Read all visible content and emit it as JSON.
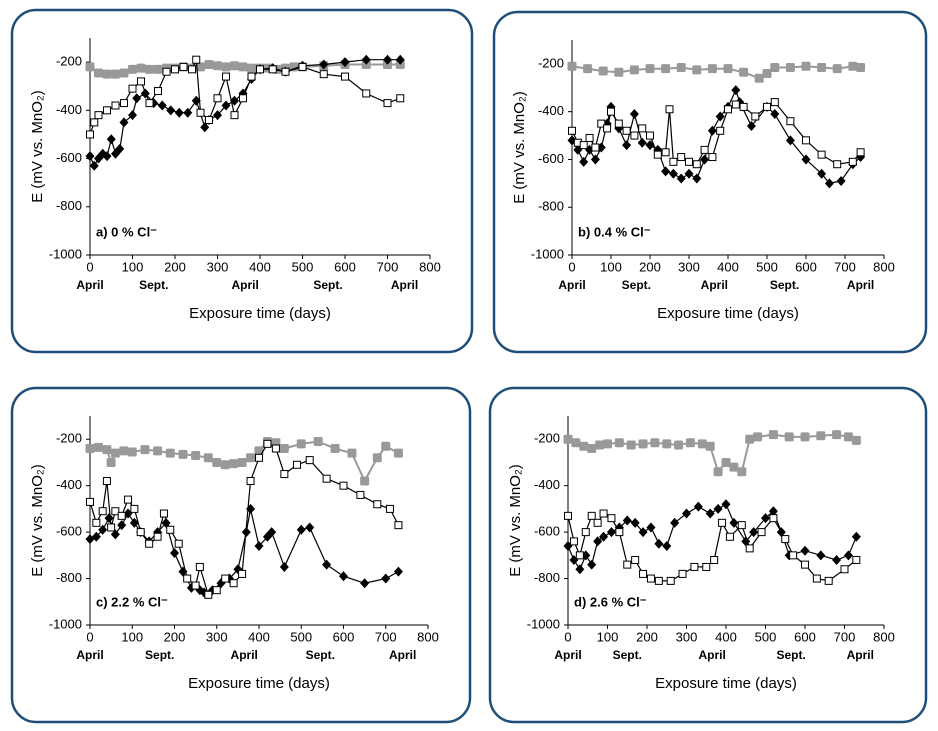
{
  "chart_data": [
    {
      "type": "line",
      "y_label": "E (mV vs. MnO₂)",
      "x_label": "Exposure time (days)",
      "annotation": "a) 0 % Cl⁻",
      "xlim": [
        0,
        800
      ],
      "xticks": [
        0,
        100,
        200,
        300,
        400,
        500,
        600,
        700,
        800
      ],
      "ylim": [
        -1000,
        -100
      ],
      "yticks": [
        -1000,
        -800,
        -600,
        -400,
        -200
      ],
      "month_ticks": [
        {
          "value": 0,
          "label": "April"
        },
        {
          "value": 150,
          "label": "Sept."
        },
        {
          "value": 365,
          "label": "April"
        },
        {
          "value": 560,
          "label": "Sept."
        },
        {
          "value": 740,
          "label": "April"
        }
      ],
      "series": [
        {
          "color": "#999999",
          "marker": "square-filled",
          "x": [
            0,
            20,
            40,
            60,
            80,
            100,
            120,
            140,
            160,
            180,
            200,
            220,
            240,
            260,
            280,
            300,
            320,
            340,
            360,
            380,
            400,
            420,
            440,
            460,
            480,
            500,
            550,
            600,
            650,
            700,
            730
          ],
          "values": [
            -220,
            -245,
            -250,
            -250,
            -245,
            -230,
            -225,
            -230,
            -230,
            -225,
            -225,
            -220,
            -225,
            -220,
            -210,
            -215,
            -220,
            -215,
            -220,
            -225,
            -225,
            -225,
            -230,
            -225,
            -220,
            -220,
            -215,
            -210,
            -210,
            -210,
            -210
          ]
        },
        {
          "color": "#000000",
          "marker": "diamond-filled",
          "x": [
            0,
            10,
            20,
            30,
            40,
            50,
            60,
            70,
            80,
            100,
            110,
            130,
            150,
            170,
            190,
            210,
            230,
            250,
            270,
            280,
            300,
            320,
            340,
            360,
            380,
            400,
            430,
            460,
            500,
            550,
            600,
            650,
            700,
            730
          ],
          "values": [
            -590,
            -630,
            -600,
            -580,
            -590,
            -520,
            -580,
            -560,
            -450,
            -420,
            -350,
            -330,
            -370,
            -380,
            -400,
            -410,
            -410,
            -360,
            -470,
            -440,
            -420,
            -380,
            -360,
            -330,
            -270,
            -230,
            -225,
            -240,
            -215,
            -210,
            -200,
            -190,
            -190,
            -190
          ]
        },
        {
          "color": "#000000",
          "marker": "square-open",
          "x": [
            0,
            10,
            20,
            40,
            60,
            80,
            100,
            120,
            140,
            160,
            180,
            200,
            220,
            240,
            250,
            260,
            280,
            300,
            320,
            340,
            360,
            380,
            400,
            430,
            460,
            500,
            550,
            600,
            650,
            700,
            730
          ],
          "values": [
            -500,
            -450,
            -420,
            -400,
            -380,
            -370,
            -310,
            -280,
            -370,
            -320,
            -240,
            -230,
            -220,
            -230,
            -190,
            -410,
            -440,
            -350,
            -260,
            -420,
            -350,
            -260,
            -230,
            -230,
            -240,
            -220,
            -250,
            -260,
            -330,
            -370,
            -350
          ]
        }
      ]
    },
    {
      "type": "line",
      "y_label": "E (mV vs. MnO₂)",
      "x_label": "Exposure time (days)",
      "annotation": "b) 0.4 % Cl⁻",
      "xlim": [
        0,
        800
      ],
      "xticks": [
        0,
        100,
        200,
        300,
        400,
        500,
        600,
        700,
        800
      ],
      "ylim": [
        -1000,
        -100
      ],
      "yticks": [
        -1000,
        -800,
        -600,
        -400,
        -200
      ],
      "month_ticks": [
        {
          "value": 0,
          "label": "April"
        },
        {
          "value": 165,
          "label": "Sept."
        },
        {
          "value": 365,
          "label": "April"
        },
        {
          "value": 545,
          "label": "Sept."
        },
        {
          "value": 740,
          "label": "April"
        }
      ],
      "series": [
        {
          "color": "#999999",
          "marker": "square-filled",
          "x": [
            0,
            40,
            80,
            120,
            160,
            200,
            240,
            280,
            320,
            360,
            400,
            440,
            480,
            500,
            520,
            560,
            600,
            640,
            680,
            720,
            740
          ],
          "values": [
            -210,
            -220,
            -230,
            -235,
            -225,
            -220,
            -220,
            -215,
            -225,
            -220,
            -220,
            -235,
            -260,
            -240,
            -215,
            -215,
            -210,
            -215,
            -220,
            -210,
            -215
          ]
        },
        {
          "color": "#000000",
          "marker": "diamond-filled",
          "x": [
            0,
            15,
            30,
            45,
            60,
            75,
            90,
            100,
            120,
            140,
            160,
            180,
            200,
            220,
            240,
            260,
            280,
            300,
            320,
            340,
            360,
            380,
            400,
            420,
            430,
            460,
            500,
            520,
            560,
            600,
            640,
            660,
            690,
            720,
            740
          ],
          "values": [
            -520,
            -560,
            -610,
            -560,
            -600,
            -550,
            -450,
            -380,
            -470,
            -540,
            -410,
            -530,
            -540,
            -560,
            -650,
            -660,
            -680,
            -660,
            -680,
            -600,
            -480,
            -420,
            -380,
            -310,
            -360,
            -460,
            -380,
            -410,
            -520,
            -600,
            -660,
            -700,
            -690,
            -620,
            -590
          ]
        },
        {
          "color": "#000000",
          "marker": "square-open",
          "x": [
            0,
            15,
            30,
            45,
            60,
            75,
            90,
            100,
            120,
            140,
            160,
            180,
            200,
            220,
            240,
            250,
            260,
            280,
            300,
            320,
            340,
            360,
            380,
            400,
            420,
            440,
            470,
            500,
            520,
            560,
            600,
            640,
            680,
            720,
            740
          ],
          "values": [
            -480,
            -530,
            -540,
            -510,
            -550,
            -450,
            -470,
            -400,
            -450,
            -480,
            -500,
            -470,
            -500,
            -580,
            -570,
            -390,
            -610,
            -590,
            -610,
            -620,
            -560,
            -590,
            -480,
            -390,
            -370,
            -380,
            -420,
            -380,
            -360,
            -440,
            -520,
            -580,
            -620,
            -610,
            -570
          ]
        }
      ]
    },
    {
      "type": "line",
      "y_label": "E (mV vs. MnO₂)",
      "x_label": "Exposure time (days)",
      "annotation": "c) 2.2 % Cl⁻",
      "xlim": [
        0,
        800
      ],
      "xticks": [
        0,
        100,
        200,
        300,
        400,
        500,
        600,
        700,
        800
      ],
      "ylim": [
        -1000,
        -100
      ],
      "yticks": [
        -1000,
        -800,
        -600,
        -400,
        -200
      ],
      "month_ticks": [
        {
          "value": 0,
          "label": "April"
        },
        {
          "value": 165,
          "label": "Sept."
        },
        {
          "value": 365,
          "label": "April"
        },
        {
          "value": 545,
          "label": "Sept."
        },
        {
          "value": 740,
          "label": "April"
        }
      ],
      "series": [
        {
          "color": "#999999",
          "marker": "square-filled",
          "x": [
            0,
            20,
            40,
            50,
            60,
            80,
            100,
            130,
            160,
            190,
            220,
            250,
            280,
            300,
            320,
            340,
            360,
            380,
            400,
            420,
            440,
            460,
            500,
            540,
            580,
            620,
            650,
            680,
            700,
            730
          ],
          "values": [
            -240,
            -235,
            -245,
            -300,
            -260,
            -250,
            -255,
            -245,
            -250,
            -260,
            -265,
            -270,
            -280,
            -300,
            -310,
            -305,
            -300,
            -280,
            -250,
            -210,
            -215,
            -240,
            -220,
            -210,
            -240,
            -260,
            -380,
            -280,
            -230,
            -260
          ]
        },
        {
          "color": "#000000",
          "marker": "diamond-filled",
          "x": [
            0,
            15,
            30,
            45,
            60,
            75,
            90,
            105,
            120,
            140,
            160,
            180,
            200,
            220,
            240,
            260,
            270,
            290,
            310,
            330,
            350,
            370,
            380,
            400,
            420,
            430,
            460,
            500,
            520,
            560,
            600,
            650,
            700,
            730
          ],
          "values": [
            -630,
            -620,
            -590,
            -540,
            -610,
            -570,
            -520,
            -560,
            -600,
            -640,
            -600,
            -560,
            -690,
            -770,
            -840,
            -850,
            -860,
            -850,
            -820,
            -800,
            -760,
            -600,
            -500,
            -660,
            -620,
            -600,
            -750,
            -590,
            -580,
            -740,
            -790,
            -820,
            -800,
            -770
          ]
        },
        {
          "color": "#000000",
          "marker": "square-open",
          "x": [
            0,
            15,
            30,
            40,
            50,
            60,
            75,
            90,
            105,
            120,
            140,
            160,
            175,
            190,
            210,
            230,
            250,
            260,
            280,
            300,
            320,
            340,
            360,
            380,
            400,
            420,
            440,
            460,
            490,
            520,
            560,
            600,
            640,
            680,
            710,
            730
          ],
          "values": [
            -470,
            -560,
            -510,
            -380,
            -580,
            -510,
            -530,
            -460,
            -500,
            -600,
            -650,
            -620,
            -520,
            -590,
            -650,
            -800,
            -830,
            -750,
            -870,
            -850,
            -800,
            -820,
            -780,
            -380,
            -280,
            -220,
            -240,
            -350,
            -310,
            -290,
            -370,
            -400,
            -440,
            -480,
            -500,
            -570
          ]
        }
      ]
    },
    {
      "type": "line",
      "y_label": "E (mV vs. MnO₂)",
      "x_label": "Exposure time (days)",
      "annotation": "d) 2.6 % Cl⁻",
      "xlim": [
        0,
        800
      ],
      "xticks": [
        0,
        100,
        200,
        300,
        400,
        500,
        600,
        700,
        800
      ],
      "ylim": [
        -1000,
        -100
      ],
      "yticks": [
        -1000,
        -800,
        -600,
        -400,
        -200
      ],
      "month_ticks": [
        {
          "value": 0,
          "label": "April"
        },
        {
          "value": 150,
          "label": "Sept."
        },
        {
          "value": 365,
          "label": "April"
        },
        {
          "value": 565,
          "label": "Sept."
        },
        {
          "value": 740,
          "label": "April"
        }
      ],
      "series": [
        {
          "color": "#999999",
          "marker": "square-filled",
          "x": [
            0,
            20,
            40,
            60,
            80,
            100,
            130,
            160,
            190,
            220,
            250,
            280,
            310,
            340,
            360,
            380,
            400,
            420,
            440,
            460,
            480,
            520,
            560,
            600,
            640,
            680,
            710,
            730
          ],
          "values": [
            -200,
            -215,
            -230,
            -240,
            -225,
            -220,
            -215,
            -225,
            -220,
            -215,
            -220,
            -225,
            -215,
            -220,
            -230,
            -340,
            -300,
            -320,
            -340,
            -200,
            -190,
            -180,
            -190,
            -190,
            -185,
            -180,
            -190,
            -205
          ]
        },
        {
          "color": "#000000",
          "marker": "diamond-filled",
          "x": [
            0,
            15,
            30,
            45,
            60,
            75,
            90,
            110,
            130,
            150,
            170,
            190,
            210,
            230,
            250,
            270,
            300,
            330,
            360,
            380,
            400,
            420,
            450,
            470,
            500,
            520,
            540,
            560,
            600,
            640,
            680,
            710,
            730
          ],
          "values": [
            -660,
            -720,
            -760,
            -700,
            -740,
            -640,
            -620,
            -600,
            -580,
            -550,
            -560,
            -600,
            -580,
            -650,
            -660,
            -560,
            -520,
            -490,
            -520,
            -500,
            -480,
            -560,
            -640,
            -600,
            -540,
            -510,
            -600,
            -700,
            -680,
            -700,
            -720,
            -700,
            -620
          ]
        },
        {
          "color": "#000000",
          "marker": "square-open",
          "x": [
            0,
            15,
            30,
            45,
            60,
            75,
            90,
            110,
            130,
            150,
            170,
            190,
            210,
            230,
            260,
            290,
            320,
            350,
            370,
            390,
            410,
            440,
            460,
            490,
            520,
            550,
            570,
            600,
            630,
            660,
            700,
            730
          ],
          "values": [
            -530,
            -640,
            -700,
            -600,
            -530,
            -560,
            -520,
            -540,
            -600,
            -740,
            -720,
            -780,
            -800,
            -810,
            -810,
            -780,
            -750,
            -750,
            -720,
            -560,
            -620,
            -570,
            -670,
            -600,
            -540,
            -630,
            -700,
            -740,
            -800,
            -810,
            -760,
            -720
          ]
        }
      ]
    }
  ]
}
